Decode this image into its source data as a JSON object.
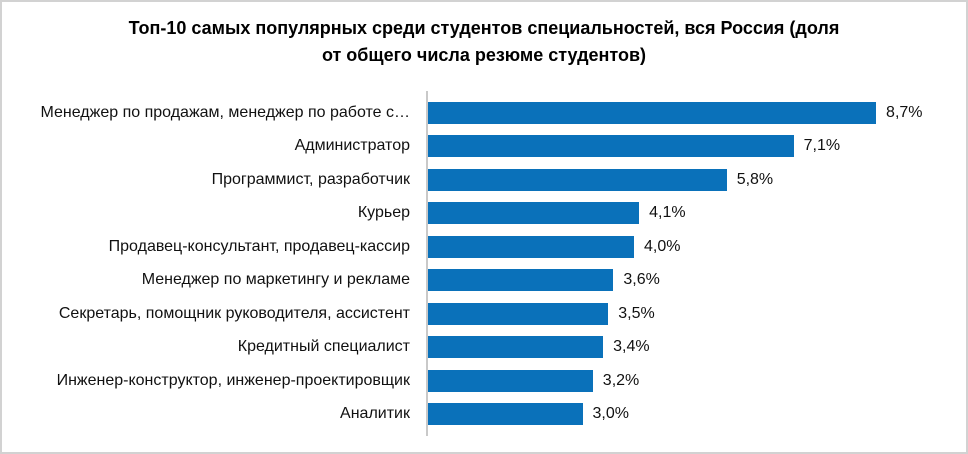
{
  "title_lines": [
    "Топ-10 самых популярных среди студентов специальностей, вся Россия (доля",
    "от общего числа резюме студентов)"
  ],
  "chart_data": {
    "type": "bar",
    "orientation": "horizontal",
    "title": "Топ-10 самых популярных среди студентов специальностей, вся Россия (доля от общего числа резюме студентов)",
    "categories": [
      "Менеджер по продажам, менеджер по работе с…",
      "Администратор",
      "Программист, разработчик",
      "Курьер",
      "Продавец-консультант, продавец-кассир",
      "Менеджер по маркетингу и рекламе",
      "Секретарь, помощник руководителя, ассистент",
      "Кредитный специалист",
      "Инженер-конструктор, инженер-проектировщик",
      "Аналитик"
    ],
    "values": [
      8.7,
      7.1,
      5.8,
      4.1,
      4.0,
      3.6,
      3.5,
      3.4,
      3.2,
      3.0
    ],
    "value_labels": [
      "8,7%",
      "7,1%",
      "5,8%",
      "4,1%",
      "4,0%",
      "3,6%",
      "3,5%",
      "3,4%",
      "3,2%",
      "3,0%"
    ],
    "unit": "%",
    "xlim": [
      0,
      10
    ],
    "grid": false,
    "legend": false,
    "value_label_position": "outside-end",
    "bar_color": "#0a71ba",
    "axis_color": "#c9c9c9"
  }
}
